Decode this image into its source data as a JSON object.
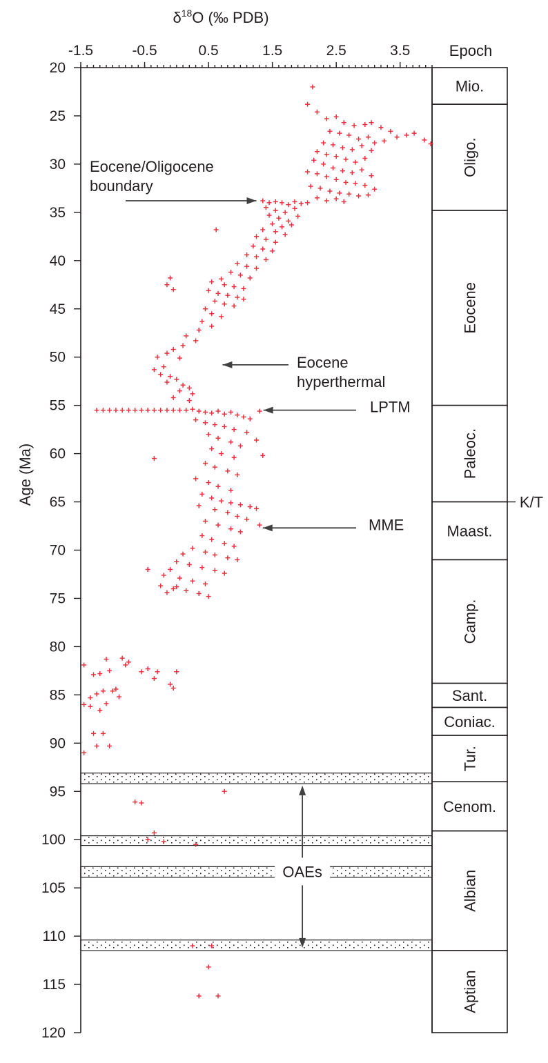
{
  "chart_data": {
    "type": "scatter",
    "title": "",
    "xlabel": "δ18O (‰ PDB)",
    "xlabel_parts": {
      "delta": "δ",
      "superscript": "18",
      "rest": "O (‰ PDB)"
    },
    "ylabel": "Age (Ma)",
    "xlim": [
      -1.5,
      4.0
    ],
    "ylim": [
      20,
      120
    ],
    "y_inverted": true,
    "x_axis_position": "top",
    "xticks": [
      -1.5,
      -0.5,
      0.5,
      1.5,
      2.5,
      3.5
    ],
    "xtick_labels": [
      "-1.5",
      "-0.5",
      "0.5",
      "1.5",
      "2.5",
      "3.5"
    ],
    "yticks": [
      20,
      25,
      30,
      35,
      40,
      45,
      50,
      55,
      60,
      65,
      70,
      75,
      80,
      85,
      90,
      95,
      100,
      105,
      110,
      115,
      120
    ],
    "ytick_labels": [
      "20",
      "25",
      "30",
      "35",
      "40",
      "45",
      "50",
      "55",
      "60",
      "65",
      "70",
      "75",
      "80",
      "85",
      "90",
      "95",
      "100",
      "105",
      "110",
      "115",
      "120"
    ],
    "grid": false,
    "marker": "plus",
    "marker_color": "#e8303f",
    "epoch_column": {
      "header": "Epoch",
      "epochs": [
        {
          "label": "Mio.",
          "top": 20.0,
          "bottom": 23.8,
          "rotated": false
        },
        {
          "label": "Oligo.",
          "top": 23.8,
          "bottom": 34.8,
          "rotated": true
        },
        {
          "label": "Eocene",
          "top": 34.8,
          "bottom": 55.0,
          "rotated": true
        },
        {
          "label": "Paleoc.",
          "top": 55.0,
          "bottom": 65.0,
          "rotated": true
        },
        {
          "label": "Maast.",
          "top": 65.0,
          "bottom": 71.0,
          "rotated": false
        },
        {
          "label": "Camp.",
          "top": 71.0,
          "bottom": 83.8,
          "rotated": true
        },
        {
          "label": "Sant.",
          "top": 83.8,
          "bottom": 86.3,
          "rotated": false
        },
        {
          "label": "Coniac.",
          "top": 86.3,
          "bottom": 89.2,
          "rotated": false
        },
        {
          "label": "Tur.",
          "top": 89.2,
          "bottom": 94.0,
          "rotated": true
        },
        {
          "label": "Cenom.",
          "top": 94.0,
          "bottom": 99.1,
          "rotated": false
        },
        {
          "label": "Albian",
          "top": 99.1,
          "bottom": 111.5,
          "rotated": true
        },
        {
          "label": "Aptian",
          "top": 111.5,
          "bottom": 120.0,
          "rotated": true
        }
      ],
      "boundary_label": {
        "text": "K/T",
        "age": 65.0
      }
    },
    "oae_bands": [
      {
        "top": 93.1,
        "bottom": 94.2
      },
      {
        "top": 99.6,
        "bottom": 100.6
      },
      {
        "top": 102.8,
        "bottom": 103.9
      },
      {
        "top": 110.4,
        "bottom": 111.5
      }
    ],
    "annotations": [
      {
        "lines": [
          "Eocene/Oligocene",
          "boundary"
        ],
        "arrow_from": [
          -0.05,
          33.8
        ],
        "arrow_to": [
          1.25,
          33.8
        ]
      },
      {
        "lines": [
          "Eocene",
          "hyperthermal"
        ],
        "arrow_from": [
          1.5,
          50.8
        ],
        "arrow_to": [
          0.72,
          50.8
        ]
      },
      {
        "lines": [
          "LPTM"
        ],
        "arrow_from": [
          2.2,
          55.5
        ],
        "arrow_to": [
          1.36,
          55.5
        ]
      },
      {
        "lines": [
          "MME"
        ],
        "arrow_from": [
          2.05,
          67.7
        ],
        "arrow_to": [
          1.35,
          67.7
        ]
      },
      {
        "lines": [
          "OAEs"
        ],
        "center": [
          1.97,
          103.3
        ],
        "arrow_up_to": 94.4,
        "arrow_down_to": 111.2
      }
    ],
    "points": [
      [
        2.13,
        22.0
      ],
      [
        2.05,
        23.8
      ],
      [
        2.2,
        24.6
      ],
      [
        2.35,
        25.3
      ],
      [
        2.5,
        25.1
      ],
      [
        2.62,
        25.7
      ],
      [
        2.78,
        26.0
      ],
      [
        2.95,
        25.9
      ],
      [
        3.05,
        25.7
      ],
      [
        3.2,
        26.2
      ],
      [
        3.35,
        26.6
      ],
      [
        3.45,
        27.2
      ],
      [
        3.6,
        27.0
      ],
      [
        3.72,
        26.8
      ],
      [
        3.88,
        27.5
      ],
      [
        3.98,
        27.9
      ],
      [
        2.4,
        26.6
      ],
      [
        2.55,
        26.8
      ],
      [
        2.7,
        27.0
      ],
      [
        2.85,
        27.4
      ],
      [
        3.0,
        27.2
      ],
      [
        3.1,
        27.8
      ],
      [
        3.25,
        27.6
      ],
      [
        2.3,
        27.8
      ],
      [
        2.45,
        28.0
      ],
      [
        2.6,
        28.3
      ],
      [
        2.75,
        28.5
      ],
      [
        2.9,
        28.1
      ],
      [
        3.05,
        28.6
      ],
      [
        2.2,
        28.7
      ],
      [
        2.35,
        29.0
      ],
      [
        2.5,
        29.2
      ],
      [
        2.65,
        29.5
      ],
      [
        2.8,
        29.8
      ],
      [
        2.95,
        29.4
      ],
      [
        2.15,
        29.6
      ],
      [
        2.3,
        30.0
      ],
      [
        2.45,
        30.4
      ],
      [
        2.6,
        30.7
      ],
      [
        2.75,
        30.9
      ],
      [
        2.9,
        30.6
      ],
      [
        3.05,
        31.2
      ],
      [
        2.05,
        30.8
      ],
      [
        2.2,
        31.0
      ],
      [
        2.35,
        31.3
      ],
      [
        2.5,
        31.6
      ],
      [
        2.65,
        31.9
      ],
      [
        2.8,
        32.0
      ],
      [
        2.95,
        32.2
      ],
      [
        3.1,
        32.6
      ],
      [
        2.1,
        32.3
      ],
      [
        2.25,
        32.5
      ],
      [
        2.4,
        32.8
      ],
      [
        2.55,
        33.0
      ],
      [
        2.7,
        33.1
      ],
      [
        2.85,
        33.3
      ],
      [
        3.0,
        33.2
      ],
      [
        2.2,
        33.5
      ],
      [
        2.35,
        33.8
      ],
      [
        2.5,
        33.6
      ],
      [
        2.62,
        33.9
      ],
      [
        1.35,
        33.8
      ],
      [
        1.45,
        34.0
      ],
      [
        1.55,
        33.9
      ],
      [
        1.65,
        34.0
      ],
      [
        1.75,
        34.2
      ],
      [
        1.85,
        33.9
      ],
      [
        1.95,
        34.1
      ],
      [
        2.05,
        34.0
      ],
      [
        1.4,
        34.5
      ],
      [
        1.55,
        34.8
      ],
      [
        1.7,
        35.0
      ],
      [
        1.85,
        34.6
      ],
      [
        1.45,
        35.3
      ],
      [
        1.6,
        35.6
      ],
      [
        1.75,
        35.9
      ],
      [
        1.9,
        35.4
      ],
      [
        1.5,
        36.2
      ],
      [
        1.65,
        36.5
      ],
      [
        1.8,
        36.3
      ],
      [
        1.35,
        36.8
      ],
      [
        1.55,
        37.0
      ],
      [
        1.7,
        37.3
      ],
      [
        1.25,
        37.5
      ],
      [
        1.4,
        37.8
      ],
      [
        1.55,
        38.1
      ],
      [
        1.2,
        38.5
      ],
      [
        1.35,
        38.8
      ],
      [
        1.5,
        39.0
      ],
      [
        1.1,
        39.4
      ],
      [
        1.25,
        39.6
      ],
      [
        1.4,
        39.9
      ],
      [
        0.95,
        40.3
      ],
      [
        1.1,
        40.6
      ],
      [
        1.25,
        40.8
      ],
      [
        0.85,
        41.2
      ],
      [
        1.0,
        41.5
      ],
      [
        1.15,
        41.8
      ],
      [
        0.7,
        41.9
      ],
      [
        0.55,
        42.2
      ],
      [
        0.75,
        42.5
      ],
      [
        0.9,
        42.7
      ],
      [
        1.05,
        42.9
      ],
      [
        0.5,
        43.1
      ],
      [
        0.65,
        43.4
      ],
      [
        0.8,
        43.6
      ],
      [
        0.95,
        43.8
      ],
      [
        1.05,
        44.0
      ],
      [
        0.6,
        44.2
      ],
      [
        0.75,
        44.5
      ],
      [
        0.9,
        44.7
      ],
      [
        0.45,
        45.0
      ],
      [
        0.55,
        45.5
      ],
      [
        0.7,
        45.8
      ],
      [
        0.4,
        46.3
      ],
      [
        0.55,
        46.8
      ],
      [
        0.35,
        47.2
      ],
      [
        0.15,
        47.8
      ],
      [
        0.3,
        48.3
      ],
      [
        0.1,
        48.8
      ],
      [
        -0.05,
        49.2
      ],
      [
        -0.15,
        49.6
      ],
      [
        0.05,
        50.1
      ],
      [
        -0.3,
        50.0
      ],
      [
        -0.2,
        51.0
      ],
      [
        -0.35,
        51.3
      ],
      [
        -0.25,
        51.8
      ],
      [
        -0.1,
        52.0
      ],
      [
        0.0,
        52.3
      ],
      [
        -0.15,
        52.6
      ],
      [
        0.1,
        52.9
      ],
      [
        0.2,
        53.2
      ],
      [
        0.05,
        53.5
      ],
      [
        0.25,
        53.8
      ],
      [
        -0.05,
        54.2
      ],
      [
        0.2,
        54.5
      ],
      [
        0.62,
        36.8
      ],
      [
        -0.1,
        41.8
      ],
      [
        -0.05,
        43.0
      ],
      [
        -0.15,
        42.5
      ],
      [
        -1.25,
        55.5
      ],
      [
        -1.15,
        55.5
      ],
      [
        -1.05,
        55.5
      ],
      [
        -0.95,
        55.5
      ],
      [
        -0.85,
        55.5
      ],
      [
        -0.75,
        55.5
      ],
      [
        -0.65,
        55.5
      ],
      [
        -0.55,
        55.5
      ],
      [
        -0.45,
        55.5
      ],
      [
        -0.35,
        55.5
      ],
      [
        -0.25,
        55.5
      ],
      [
        -0.15,
        55.5
      ],
      [
        -0.05,
        55.5
      ],
      [
        0.05,
        55.5
      ],
      [
        0.15,
        55.5
      ],
      [
        0.25,
        55.4
      ],
      [
        0.35,
        55.6
      ],
      [
        0.45,
        55.7
      ],
      [
        0.55,
        55.8
      ],
      [
        0.65,
        55.6
      ],
      [
        0.75,
        55.9
      ],
      [
        0.85,
        55.7
      ],
      [
        0.95,
        56.0
      ],
      [
        1.05,
        56.2
      ],
      [
        1.15,
        56.4
      ],
      [
        1.3,
        55.6
      ],
      [
        0.3,
        56.5
      ],
      [
        0.45,
        56.8
      ],
      [
        0.6,
        57.0
      ],
      [
        0.75,
        57.2
      ],
      [
        0.9,
        57.5
      ],
      [
        1.1,
        57.8
      ],
      [
        0.5,
        58.0
      ],
      [
        0.65,
        58.4
      ],
      [
        0.85,
        58.8
      ],
      [
        1.0,
        59.2
      ],
      [
        1.25,
        58.6
      ],
      [
        0.55,
        59.5
      ],
      [
        0.7,
        60.0
      ],
      [
        0.9,
        60.4
      ],
      [
        -0.35,
        60.5
      ],
      [
        1.35,
        60.2
      ],
      [
        0.45,
        61.0
      ],
      [
        0.6,
        61.4
      ],
      [
        0.8,
        61.8
      ],
      [
        0.95,
        62.2
      ],
      [
        0.3,
        62.6
      ],
      [
        0.5,
        63.0
      ],
      [
        0.65,
        63.4
      ],
      [
        0.85,
        63.8
      ],
      [
        0.4,
        64.2
      ],
      [
        0.55,
        64.6
      ],
      [
        0.7,
        64.9
      ],
      [
        0.85,
        65.1
      ],
      [
        1.0,
        65.3
      ],
      [
        1.15,
        65.5
      ],
      [
        1.25,
        65.7
      ],
      [
        0.35,
        65.4
      ],
      [
        0.6,
        65.8
      ],
      [
        0.8,
        66.1
      ],
      [
        0.95,
        66.5
      ],
      [
        1.1,
        66.8
      ],
      [
        0.45,
        67.0
      ],
      [
        0.65,
        67.4
      ],
      [
        0.85,
        67.8
      ],
      [
        1.0,
        68.1
      ],
      [
        1.3,
        67.4
      ],
      [
        0.4,
        68.5
      ],
      [
        0.55,
        68.9
      ],
      [
        0.75,
        69.3
      ],
      [
        0.9,
        69.6
      ],
      [
        0.25,
        69.8
      ],
      [
        0.45,
        70.2
      ],
      [
        0.6,
        70.5
      ],
      [
        0.8,
        70.8
      ],
      [
        0.95,
        71.0
      ],
      [
        0.1,
        70.4
      ],
      [
        0.0,
        71.2
      ],
      [
        0.2,
        71.5
      ],
      [
        0.4,
        71.8
      ],
      [
        0.6,
        72.1
      ],
      [
        0.75,
        72.4
      ],
      [
        -0.1,
        72.0
      ],
      [
        -0.45,
        72.0
      ],
      [
        -0.2,
        72.6
      ],
      [
        0.05,
        72.9
      ],
      [
        0.25,
        73.2
      ],
      [
        0.45,
        73.5
      ],
      [
        -0.25,
        73.7
      ],
      [
        -0.05,
        74.0
      ],
      [
        0.15,
        74.2
      ],
      [
        0.35,
        74.5
      ],
      [
        0.5,
        74.8
      ],
      [
        -0.15,
        74.4
      ],
      [
        0.0,
        73.8
      ]
    ],
    "points_sparse": [
      [
        -1.45,
        81.9
      ],
      [
        -1.3,
        82.9
      ],
      [
        -1.2,
        82.8
      ],
      [
        -1.1,
        81.3
      ],
      [
        -1.05,
        82.5
      ],
      [
        -0.85,
        81.2
      ],
      [
        -0.8,
        81.9
      ],
      [
        -0.75,
        81.6
      ],
      [
        -0.55,
        82.6
      ],
      [
        -0.45,
        82.3
      ],
      [
        -0.35,
        83.3
      ],
      [
        -0.3,
        82.6
      ],
      [
        -0.1,
        83.9
      ],
      [
        -0.05,
        84.3
      ],
      [
        0.0,
        82.6
      ],
      [
        -0.95,
        84.4
      ],
      [
        -1.15,
        84.6
      ],
      [
        -1.25,
        84.9
      ],
      [
        -1.35,
        85.3
      ],
      [
        -1.0,
        84.6
      ],
      [
        -0.9,
        85.2
      ],
      [
        -1.1,
        85.9
      ],
      [
        -1.35,
        86.2
      ],
      [
        -1.45,
        86.0
      ],
      [
        -1.2,
        86.6
      ],
      [
        -1.3,
        89.0
      ],
      [
        -1.15,
        89.0
      ],
      [
        -1.25,
        90.3
      ],
      [
        -1.05,
        90.3
      ],
      [
        -1.55,
        91.8
      ],
      [
        -1.45,
        91.0
      ],
      [
        -0.65,
        96.1
      ],
      [
        -0.55,
        96.2
      ],
      [
        0.75,
        95.0
      ],
      [
        -0.35,
        99.3
      ],
      [
        -0.2,
        100.2
      ],
      [
        -0.45,
        100.0
      ],
      [
        0.3,
        100.5
      ],
      [
        0.25,
        111.0
      ],
      [
        0.55,
        111.0
      ],
      [
        0.5,
        113.2
      ],
      [
        0.35,
        116.2
      ],
      [
        0.65,
        116.2
      ]
    ]
  }
}
